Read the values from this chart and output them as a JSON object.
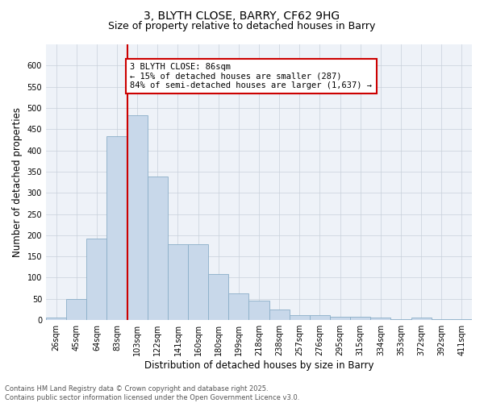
{
  "title_line1": "3, BLYTH CLOSE, BARRY, CF62 9HG",
  "title_line2": "Size of property relative to detached houses in Barry",
  "xlabel": "Distribution of detached houses by size in Barry",
  "ylabel": "Number of detached properties",
  "categories": [
    "26sqm",
    "45sqm",
    "64sqm",
    "83sqm",
    "103sqm",
    "122sqm",
    "141sqm",
    "160sqm",
    "180sqm",
    "199sqm",
    "218sqm",
    "238sqm",
    "257sqm",
    "276sqm",
    "295sqm",
    "315sqm",
    "334sqm",
    "353sqm",
    "372sqm",
    "392sqm",
    "411sqm"
  ],
  "values": [
    5,
    50,
    192,
    433,
    483,
    338,
    178,
    178,
    108,
    62,
    45,
    24,
    11,
    11,
    8,
    8,
    5,
    3,
    5,
    3,
    3
  ],
  "bar_color": "#c8d8ea",
  "bar_edge_color": "#8aaec8",
  "vline_x_index": 3.5,
  "vline_color": "#cc0000",
  "annotation_text": "3 BLYTH CLOSE: 86sqm\n← 15% of detached houses are smaller (287)\n84% of semi-detached houses are larger (1,637) →",
  "annotation_box_color": "#ffffff",
  "annotation_box_edge": "#cc0000",
  "ylim": [
    0,
    650
  ],
  "yticks": [
    0,
    50,
    100,
    150,
    200,
    250,
    300,
    350,
    400,
    450,
    500,
    550,
    600
  ],
  "grid_color": "#c8d0da",
  "background_color": "#eef2f8",
  "footer_text": "Contains HM Land Registry data © Crown copyright and database right 2025.\nContains public sector information licensed under the Open Government Licence v3.0.",
  "title_fontsize": 10,
  "subtitle_fontsize": 9,
  "axis_label_fontsize": 8.5,
  "tick_fontsize": 7,
  "annotation_fontsize": 7.5,
  "footer_fontsize": 6
}
